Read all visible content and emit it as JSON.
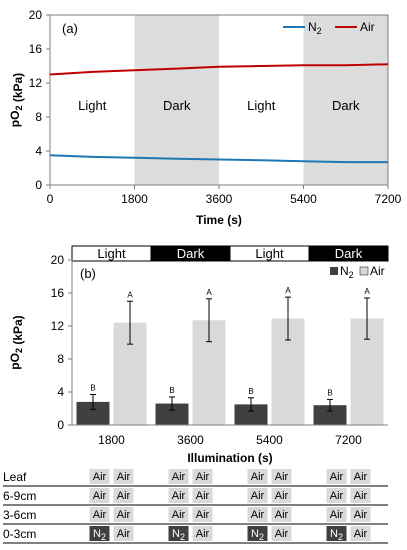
{
  "chart_data": [
    {
      "type": "line",
      "panel_label": "(a)",
      "ylabel_main": "pO",
      "ylabel_sub": "2",
      "ylabel_unit": " (kPa)",
      "xlabel": "Time (s)",
      "xlim": [
        0,
        7200
      ],
      "ylim": [
        0,
        20
      ],
      "xticks": [
        "0",
        "1800",
        "3600",
        "5400",
        "7200"
      ],
      "yticks": [
        "0",
        "4",
        "8",
        "12",
        "16",
        "20"
      ],
      "grid": false,
      "legend_position": "top-right",
      "periods": [
        {
          "label": "Light",
          "start": 0,
          "end": 1800,
          "shaded": false
        },
        {
          "label": "Dark",
          "start": 1800,
          "end": 3600,
          "shaded": true
        },
        {
          "label": "Light",
          "start": 3600,
          "end": 5400,
          "shaded": false
        },
        {
          "label": "Dark",
          "start": 5400,
          "end": 7200,
          "shaded": true
        }
      ],
      "series": [
        {
          "name_main": "N",
          "name_sub": "2",
          "color": "#1f77b4",
          "x": [
            0,
            900,
            1800,
            2700,
            3600,
            4500,
            5400,
            6300,
            7200
          ],
          "y": [
            3.5,
            3.3,
            3.2,
            3.1,
            3.0,
            2.9,
            2.8,
            2.7,
            2.7
          ]
        },
        {
          "name_main": "Air",
          "name_sub": "",
          "color": "#c00000",
          "x": [
            0,
            900,
            1800,
            2700,
            3600,
            4500,
            5400,
            6300,
            7200
          ],
          "y": [
            13.0,
            13.3,
            13.5,
            13.7,
            13.9,
            14.0,
            14.1,
            14.1,
            14.2
          ]
        }
      ]
    },
    {
      "type": "bar",
      "panel_label": "(b)",
      "ylabel_main": "pO",
      "ylabel_sub": "2",
      "ylabel_unit": " (kPa)",
      "xlabel": "Illumination (s)",
      "ylim": [
        0,
        20
      ],
      "yticks": [
        "0",
        "4",
        "8",
        "12",
        "16",
        "20"
      ],
      "categories": [
        "1800",
        "3600",
        "5400",
        "7200"
      ],
      "periods": [
        "Light",
        "Dark",
        "Light",
        "Dark"
      ],
      "legend_position": "top-right",
      "series": [
        {
          "name_main": "N",
          "name_sub": "2",
          "color": "#404040",
          "values": [
            2.8,
            2.6,
            2.5,
            2.4
          ],
          "errors": [
            0.9,
            0.8,
            0.8,
            0.7
          ],
          "labels": [
            "B",
            "B",
            "B",
            "B"
          ]
        },
        {
          "name_main": "Air",
          "name_sub": "",
          "color": "#d9d9d9",
          "values": [
            12.4,
            12.7,
            12.9,
            12.9
          ],
          "errors": [
            2.6,
            2.6,
            2.6,
            2.5
          ],
          "labels": [
            "A",
            "A",
            "A",
            "A"
          ]
        }
      ]
    }
  ],
  "treatment_table": {
    "rows": [
      {
        "label": "Leaf",
        "n2": [
          false,
          false,
          false,
          false
        ]
      },
      {
        "label": "6-9cm",
        "n2": [
          false,
          false,
          false,
          false
        ]
      },
      {
        "label": "3-6cm",
        "n2": [
          false,
          false,
          false,
          false
        ]
      },
      {
        "label": "0-3cm",
        "n2": [
          true,
          true,
          true,
          true
        ]
      }
    ],
    "air_text": "Air",
    "n2_main": "N",
    "n2_sub": "2"
  }
}
